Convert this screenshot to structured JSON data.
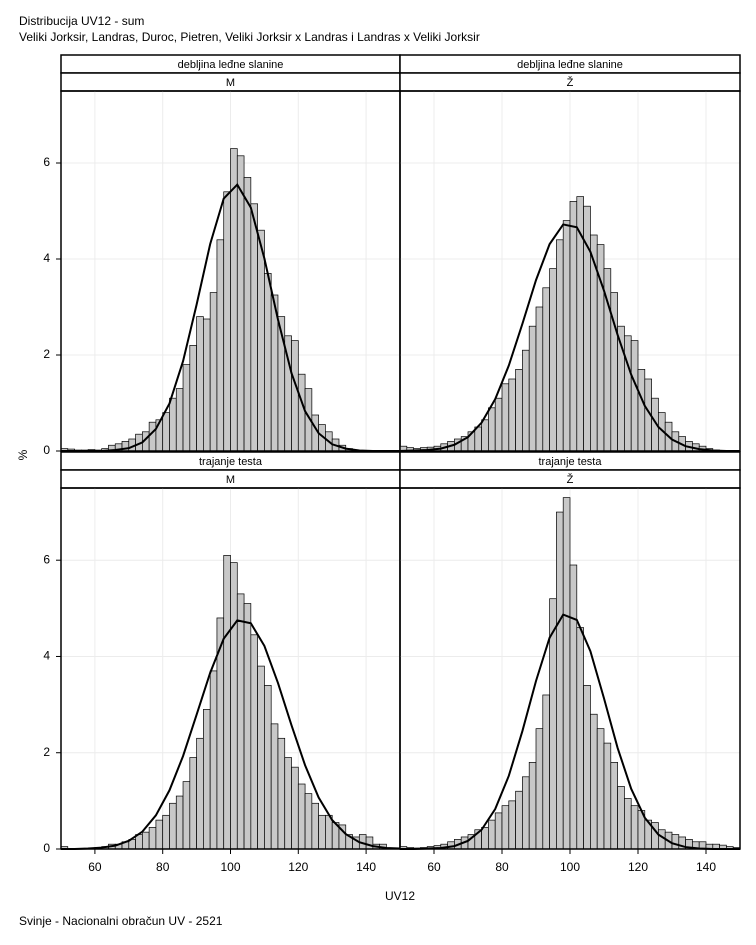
{
  "title": "Distribucija UV12 - sum",
  "subtitle": "Veliki Jorksir, Landras, Duroc, Pietren, Veliki Jorksir x Landras i Landras x Veliki Jorksir",
  "x_label": "UV12",
  "y_label": "%",
  "footnote": "Svinje - Nacionalni obračun UV - 2521",
  "chart_data": [
    {
      "type": "histogram",
      "strip": [
        "debljina leđne slanine",
        "M"
      ],
      "color": "#c8c8c8",
      "grid": true,
      "xlim": [
        50,
        150
      ],
      "xticks": [
        60,
        80,
        100,
        120,
        140
      ],
      "ylim": [
        0,
        7.5
      ],
      "yticks": [
        0,
        2,
        4,
        6
      ],
      "bins": [
        50,
        52,
        54,
        56,
        58,
        60,
        62,
        64,
        66,
        68,
        70,
        72,
        74,
        76,
        78,
        80,
        82,
        84,
        86,
        88,
        90,
        92,
        94,
        96,
        98,
        100,
        102,
        104,
        106,
        108,
        110,
        112,
        114,
        116,
        118,
        120,
        122,
        124,
        126,
        128,
        130,
        132,
        134,
        136,
        138,
        140,
        142,
        144,
        146,
        148,
        150
      ],
      "values": [
        0.05,
        0.04,
        0.02,
        0.02,
        0.03,
        0.02,
        0.05,
        0.12,
        0.15,
        0.2,
        0.25,
        0.35,
        0.4,
        0.6,
        0.65,
        0.8,
        1.1,
        1.3,
        1.8,
        2.2,
        2.8,
        2.75,
        3.3,
        4.4,
        5.4,
        6.3,
        6.15,
        5.7,
        5.15,
        4.6,
        3.7,
        3.25,
        2.8,
        2.4,
        2.3,
        1.6,
        1.3,
        0.75,
        0.55,
        0.4,
        0.25,
        0.12,
        0.05,
        0.02,
        0.01,
        0,
        0,
        0,
        0,
        0
      ],
      "curve": {
        "x": [
          50,
          54,
          58,
          62,
          66,
          70,
          74,
          78,
          82,
          86,
          90,
          94,
          98,
          102,
          106,
          110,
          114,
          118,
          122,
          126,
          130,
          134,
          138,
          142,
          146,
          150
        ],
        "values": [
          0,
          0,
          0,
          0,
          0.02,
          0.06,
          0.18,
          0.46,
          0.99,
          1.87,
          3.05,
          4.31,
          5.26,
          5.55,
          5.07,
          4.01,
          2.74,
          1.62,
          0.83,
          0.37,
          0.14,
          0.05,
          0.01,
          0,
          0,
          0
        ]
      }
    },
    {
      "type": "histogram",
      "strip": [
        "debljina leđne slanine",
        "Ž"
      ],
      "color": "#c8c8c8",
      "grid": true,
      "xlim": [
        50,
        150
      ],
      "xticks": [
        60,
        80,
        100,
        120,
        140
      ],
      "ylim": [
        0,
        7.5
      ],
      "yticks": [
        0,
        2,
        4,
        6
      ],
      "bins": [
        50,
        52,
        54,
        56,
        58,
        60,
        62,
        64,
        66,
        68,
        70,
        72,
        74,
        76,
        78,
        80,
        82,
        84,
        86,
        88,
        90,
        92,
        94,
        96,
        98,
        100,
        102,
        104,
        106,
        108,
        110,
        112,
        114,
        116,
        118,
        120,
        122,
        124,
        126,
        128,
        130,
        132,
        134,
        136,
        138,
        140,
        142,
        144,
        146,
        148,
        150
      ],
      "values": [
        0.1,
        0.07,
        0.05,
        0.07,
        0.08,
        0.1,
        0.15,
        0.2,
        0.25,
        0.3,
        0.4,
        0.5,
        0.65,
        0.9,
        1.1,
        1.4,
        1.5,
        1.7,
        2.1,
        2.6,
        3.0,
        3.4,
        3.8,
        4.4,
        4.8,
        5.2,
        5.3,
        5.1,
        4.5,
        4.3,
        3.8,
        3.3,
        2.6,
        2.4,
        2.3,
        1.7,
        1.5,
        1.1,
        0.8,
        0.6,
        0.4,
        0.3,
        0.2,
        0.15,
        0.1,
        0.05,
        0.02,
        0.01,
        0,
        0
      ],
      "curve": {
        "x": [
          50,
          54,
          58,
          62,
          66,
          70,
          74,
          78,
          82,
          86,
          90,
          94,
          98,
          102,
          106,
          110,
          114,
          118,
          122,
          126,
          130,
          134,
          138,
          142,
          146,
          150
        ],
        "values": [
          0,
          0.01,
          0.02,
          0.05,
          0.13,
          0.29,
          0.59,
          1.08,
          1.78,
          2.65,
          3.56,
          4.31,
          4.72,
          4.66,
          4.15,
          3.34,
          2.42,
          1.59,
          0.94,
          0.5,
          0.24,
          0.1,
          0.04,
          0.01,
          0,
          0
        ]
      }
    },
    {
      "type": "histogram",
      "strip": [
        "trajanje testa",
        "M"
      ],
      "color": "#c8c8c8",
      "grid": true,
      "xlim": [
        50,
        150
      ],
      "xticks": [
        60,
        80,
        100,
        120,
        140
      ],
      "ylim": [
        0,
        7.5
      ],
      "yticks": [
        0,
        2,
        4,
        6
      ],
      "bins": [
        50,
        52,
        54,
        56,
        58,
        60,
        62,
        64,
        66,
        68,
        70,
        72,
        74,
        76,
        78,
        80,
        82,
        84,
        86,
        88,
        90,
        92,
        94,
        96,
        98,
        100,
        102,
        104,
        106,
        108,
        110,
        112,
        114,
        116,
        118,
        120,
        122,
        124,
        126,
        128,
        130,
        132,
        134,
        136,
        138,
        140,
        142,
        144,
        146,
        148,
        150
      ],
      "values": [
        0.05,
        0,
        0,
        0.01,
        0.02,
        0.03,
        0.05,
        0.1,
        0.1,
        0.15,
        0.2,
        0.3,
        0.35,
        0.45,
        0.6,
        0.7,
        0.95,
        1.1,
        1.4,
        1.9,
        2.3,
        2.9,
        3.7,
        4.8,
        6.1,
        5.95,
        5.3,
        5.1,
        4.45,
        3.8,
        3.4,
        2.6,
        2.3,
        1.9,
        1.7,
        1.35,
        1.15,
        0.95,
        0.7,
        0.7,
        0.55,
        0.5,
        0.3,
        0.25,
        0.3,
        0.25,
        0.1,
        0.1,
        0,
        0
      ],
      "curve": {
        "x": [
          50,
          54,
          58,
          62,
          66,
          70,
          74,
          78,
          82,
          86,
          90,
          94,
          98,
          102,
          106,
          110,
          114,
          118,
          122,
          126,
          130,
          134,
          138,
          142,
          146,
          150
        ],
        "values": [
          0,
          0,
          0.01,
          0.03,
          0.07,
          0.17,
          0.36,
          0.7,
          1.22,
          1.93,
          2.79,
          3.66,
          4.37,
          4.75,
          4.69,
          4.22,
          3.45,
          2.57,
          1.74,
          1.07,
          0.6,
          0.31,
          0.14,
          0.06,
          0.02,
          0.01
        ]
      }
    },
    {
      "type": "histogram",
      "strip": [
        "trajanje testa",
        "Ž"
      ],
      "color": "#c8c8c8",
      "grid": true,
      "xlim": [
        50,
        150
      ],
      "xticks": [
        60,
        80,
        100,
        120,
        140
      ],
      "ylim": [
        0,
        7.5
      ],
      "yticks": [
        0,
        2,
        4,
        6
      ],
      "bins": [
        50,
        52,
        54,
        56,
        58,
        60,
        62,
        64,
        66,
        68,
        70,
        72,
        74,
        76,
        78,
        80,
        82,
        84,
        86,
        88,
        90,
        92,
        94,
        96,
        98,
        100,
        102,
        104,
        106,
        108,
        110,
        112,
        114,
        116,
        118,
        120,
        122,
        124,
        126,
        128,
        130,
        132,
        134,
        136,
        138,
        140,
        142,
        144,
        146,
        148,
        150
      ],
      "values": [
        0.05,
        0.03,
        0.02,
        0.03,
        0.05,
        0.07,
        0.1,
        0.15,
        0.2,
        0.25,
        0.3,
        0.4,
        0.45,
        0.6,
        0.75,
        0.9,
        1.0,
        1.2,
        1.5,
        1.8,
        2.5,
        3.2,
        5.2,
        7.0,
        7.3,
        5.9,
        4.6,
        3.4,
        2.8,
        2.5,
        2.2,
        1.8,
        1.3,
        1.05,
        0.9,
        0.8,
        0.6,
        0.55,
        0.4,
        0.35,
        0.3,
        0.25,
        0.2,
        0.15,
        0.15,
        0.1,
        0.1,
        0.08,
        0.05,
        0.03
      ],
      "curve": {
        "x": [
          50,
          54,
          58,
          62,
          66,
          70,
          74,
          78,
          82,
          86,
          90,
          94,
          98,
          102,
          106,
          110,
          114,
          118,
          122,
          126,
          130,
          134,
          138,
          142,
          146,
          150
        ],
        "values": [
          0,
          0,
          0.01,
          0.02,
          0.06,
          0.17,
          0.4,
          0.83,
          1.52,
          2.45,
          3.49,
          4.39,
          4.87,
          4.76,
          4.11,
          3.13,
          2.1,
          1.25,
          0.65,
          0.3,
          0.12,
          0.04,
          0.01,
          0,
          0,
          0
        ]
      }
    }
  ]
}
